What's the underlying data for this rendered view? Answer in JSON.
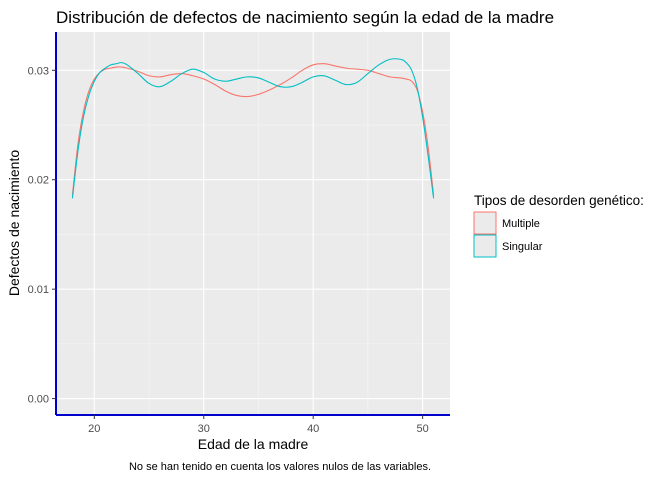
{
  "chart_data": {
    "type": "line",
    "title": "Distribución de defectos de nacimiento según la edad de la madre",
    "xlabel": "Edad de la madre",
    "ylabel": "Defectos de nacimiento",
    "caption": "No se han tenido en cuenta los valores nulos de las variables.",
    "xlim": [
      16.5,
      52.5
    ],
    "ylim": [
      -0.0015,
      0.0335
    ],
    "x_ticks": [
      20,
      30,
      40,
      50
    ],
    "y_ticks": [
      0.0,
      0.01,
      0.02,
      0.03
    ],
    "y_tick_labels": [
      "0.00",
      "0.01",
      "0.02",
      "0.03"
    ],
    "grid": true,
    "legend": {
      "title": "Tipos de desorden genético:",
      "position": "right"
    },
    "series": [
      {
        "name": "Multiple",
        "color": "#F8766D",
        "x": [
          18,
          18.5,
          19,
          19.5,
          20,
          20.5,
          21,
          21.5,
          22,
          22.5,
          23,
          24,
          25,
          26,
          27,
          28,
          29,
          30,
          31,
          32,
          33,
          34,
          35,
          36,
          37,
          38,
          39,
          40,
          41,
          42,
          43,
          44,
          45,
          46,
          47,
          48,
          48.5,
          49,
          49.5,
          50,
          50.5,
          51
        ],
        "y": [
          0.0186,
          0.0232,
          0.0262,
          0.0281,
          0.0292,
          0.0298,
          0.0301,
          0.0302,
          0.0303,
          0.0303,
          0.0302,
          0.0299,
          0.0295,
          0.0294,
          0.0296,
          0.0297,
          0.0295,
          0.0292,
          0.0287,
          0.0281,
          0.0277,
          0.0276,
          0.0278,
          0.0282,
          0.0287,
          0.0293,
          0.03,
          0.0305,
          0.0306,
          0.0304,
          0.0302,
          0.0301,
          0.03,
          0.0297,
          0.0294,
          0.0293,
          0.0292,
          0.029,
          0.0282,
          0.0262,
          0.023,
          0.0186
        ]
      },
      {
        "name": "Singular",
        "color": "#00BFC4",
        "x": [
          18,
          18.5,
          19,
          19.5,
          20,
          20.5,
          21,
          21.5,
          22,
          22.5,
          23,
          24,
          25,
          26,
          27,
          28,
          29,
          30,
          31,
          32,
          33,
          34,
          35,
          36,
          37,
          38,
          39,
          40,
          41,
          42,
          43,
          44,
          45,
          46,
          47,
          48,
          48.5,
          49,
          49.5,
          50,
          50.5,
          51
        ],
        "y": [
          0.0183,
          0.0226,
          0.0257,
          0.0277,
          0.029,
          0.0298,
          0.0302,
          0.0305,
          0.0306,
          0.0307,
          0.0305,
          0.0297,
          0.0288,
          0.0285,
          0.029,
          0.0297,
          0.0301,
          0.0298,
          0.0292,
          0.029,
          0.0292,
          0.0294,
          0.0293,
          0.0289,
          0.0285,
          0.0285,
          0.0289,
          0.0294,
          0.0295,
          0.0291,
          0.0287,
          0.0289,
          0.0297,
          0.0305,
          0.031,
          0.031,
          0.0307,
          0.03,
          0.0284,
          0.0257,
          0.0222,
          0.0183
        ]
      }
    ]
  }
}
